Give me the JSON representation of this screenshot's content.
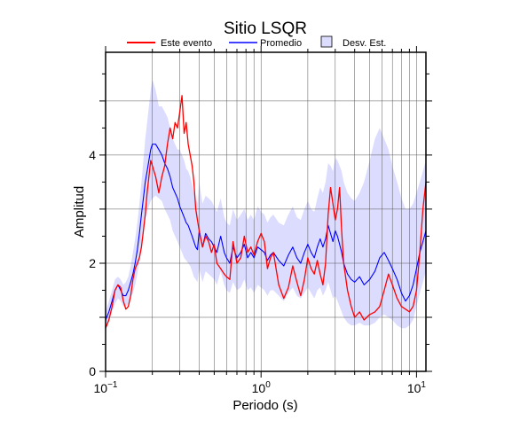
{
  "chart_data": {
    "type": "line",
    "title": "Sitio LSQR",
    "xlabel": "Periodo (s)",
    "ylabel": "Amplitud",
    "xscale": "log",
    "xlim": [
      0.1,
      11.5
    ],
    "ylim": [
      0,
      5.9
    ],
    "grid": true,
    "legend_position": "top",
    "x_ticks": [
      {
        "value": 0.1,
        "base": "10",
        "exp": "−1"
      },
      {
        "value": 1,
        "base": "10",
        "exp": "0"
      },
      {
        "value": 10,
        "base": "10",
        "exp": "1"
      }
    ],
    "y_ticks": [
      {
        "value": 0,
        "label": "0"
      },
      {
        "value": 2,
        "label": "2"
      },
      {
        "value": 4,
        "label": "4"
      }
    ],
    "series": [
      {
        "name": "Este evento",
        "color": "#ff0000",
        "x": [
          0.1,
          0.105,
          0.11,
          0.115,
          0.12,
          0.125,
          0.13,
          0.135,
          0.14,
          0.145,
          0.15,
          0.155,
          0.16,
          0.165,
          0.17,
          0.175,
          0.18,
          0.185,
          0.19,
          0.195,
          0.2,
          0.21,
          0.22,
          0.23,
          0.24,
          0.25,
          0.26,
          0.27,
          0.28,
          0.29,
          0.3,
          0.31,
          0.32,
          0.33,
          0.34,
          0.35,
          0.36,
          0.37,
          0.38,
          0.39,
          0.4,
          0.42,
          0.44,
          0.46,
          0.48,
          0.5,
          0.52,
          0.55,
          0.58,
          0.6,
          0.63,
          0.66,
          0.7,
          0.74,
          0.78,
          0.82,
          0.86,
          0.9,
          0.95,
          1.0,
          1.05,
          1.1,
          1.15,
          1.2,
          1.3,
          1.4,
          1.5,
          1.6,
          1.7,
          1.8,
          1.9,
          2.0,
          2.1,
          2.2,
          2.3,
          2.4,
          2.5,
          2.6,
          2.7,
          2.8,
          2.9,
          3.0,
          3.1,
          3.2,
          3.3,
          3.4,
          3.6,
          3.8,
          4.0,
          4.3,
          4.6,
          5.0,
          5.4,
          5.8,
          6.2,
          6.6,
          7.0,
          7.5,
          8.0,
          8.5,
          9.0,
          9.5,
          10.0,
          10.5,
          11.0,
          11.5
        ],
        "y": [
          0.8,
          0.95,
          1.2,
          1.5,
          1.6,
          1.55,
          1.3,
          1.15,
          1.2,
          1.4,
          1.7,
          1.9,
          2.0,
          2.1,
          2.3,
          2.6,
          2.9,
          3.3,
          3.6,
          3.9,
          3.8,
          3.6,
          3.3,
          3.6,
          3.8,
          4.2,
          4.5,
          4.3,
          4.6,
          4.5,
          4.8,
          5.1,
          4.4,
          4.6,
          4.2,
          4.0,
          3.8,
          3.5,
          3.0,
          2.8,
          2.6,
          2.3,
          2.5,
          2.4,
          2.2,
          2.35,
          2.0,
          1.9,
          1.8,
          1.75,
          1.7,
          2.4,
          2.0,
          2.1,
          2.5,
          2.2,
          2.3,
          2.15,
          2.4,
          2.55,
          2.4,
          1.9,
          2.1,
          2.2,
          1.6,
          1.35,
          1.55,
          1.95,
          1.65,
          1.4,
          1.7,
          2.1,
          1.9,
          1.8,
          2.05,
          1.8,
          1.6,
          2.0,
          2.9,
          3.4,
          3.1,
          2.8,
          3.0,
          3.4,
          2.6,
          2.0,
          1.5,
          1.2,
          1.0,
          1.1,
          0.95,
          1.05,
          1.1,
          1.2,
          1.5,
          1.8,
          1.6,
          1.35,
          1.2,
          1.15,
          1.1,
          1.2,
          1.5,
          2.2,
          3.0,
          3.5
        ]
      },
      {
        "name": "Promedio",
        "color": "#0000ff",
        "x": [
          0.1,
          0.105,
          0.11,
          0.115,
          0.12,
          0.125,
          0.13,
          0.135,
          0.14,
          0.145,
          0.15,
          0.155,
          0.16,
          0.165,
          0.17,
          0.175,
          0.18,
          0.185,
          0.19,
          0.195,
          0.2,
          0.21,
          0.22,
          0.23,
          0.24,
          0.25,
          0.26,
          0.27,
          0.28,
          0.29,
          0.3,
          0.31,
          0.32,
          0.33,
          0.34,
          0.35,
          0.36,
          0.37,
          0.38,
          0.39,
          0.4,
          0.42,
          0.44,
          0.46,
          0.48,
          0.5,
          0.52,
          0.55,
          0.58,
          0.6,
          0.63,
          0.66,
          0.7,
          0.74,
          0.78,
          0.82,
          0.86,
          0.9,
          0.95,
          1.0,
          1.05,
          1.1,
          1.15,
          1.2,
          1.3,
          1.4,
          1.5,
          1.6,
          1.7,
          1.8,
          1.9,
          2.0,
          2.1,
          2.2,
          2.3,
          2.4,
          2.5,
          2.6,
          2.7,
          2.8,
          2.9,
          3.0,
          3.1,
          3.2,
          3.3,
          3.4,
          3.6,
          3.8,
          4.0,
          4.3,
          4.6,
          5.0,
          5.4,
          5.8,
          6.2,
          6.6,
          7.0,
          7.5,
          8.0,
          8.5,
          9.0,
          9.5,
          10.0,
          10.5,
          11.0,
          11.5
        ],
        "y": [
          0.95,
          1.1,
          1.3,
          1.5,
          1.6,
          1.5,
          1.4,
          1.4,
          1.5,
          1.65,
          1.8,
          2.0,
          2.25,
          2.55,
          2.9,
          3.2,
          3.5,
          3.7,
          3.9,
          4.1,
          4.2,
          4.2,
          4.1,
          4.0,
          3.85,
          3.75,
          3.6,
          3.4,
          3.3,
          3.2,
          3.05,
          2.95,
          2.85,
          2.75,
          2.7,
          2.6,
          2.5,
          2.4,
          2.3,
          2.25,
          2.6,
          2.3,
          2.55,
          2.45,
          2.4,
          2.3,
          2.2,
          2.5,
          2.2,
          2.1,
          2.0,
          2.3,
          2.1,
          2.2,
          2.35,
          2.1,
          2.2,
          2.1,
          2.3,
          2.25,
          2.2,
          2.05,
          2.15,
          2.2,
          2.05,
          1.95,
          2.15,
          2.3,
          2.1,
          2.0,
          2.2,
          2.35,
          2.2,
          2.1,
          2.3,
          2.45,
          2.3,
          2.45,
          2.7,
          2.55,
          2.4,
          2.6,
          2.5,
          2.35,
          2.2,
          2.0,
          1.8,
          1.7,
          1.65,
          1.75,
          1.6,
          1.7,
          1.85,
          2.1,
          2.2,
          2.05,
          1.9,
          1.7,
          1.45,
          1.3,
          1.4,
          1.6,
          1.9,
          2.2,
          2.4,
          2.6
        ]
      },
      {
        "name": "Desv. Est.",
        "color": "#dcdcff",
        "x": [
          0.1,
          0.105,
          0.11,
          0.115,
          0.12,
          0.125,
          0.13,
          0.135,
          0.14,
          0.145,
          0.15,
          0.155,
          0.16,
          0.165,
          0.17,
          0.175,
          0.18,
          0.185,
          0.19,
          0.195,
          0.2,
          0.21,
          0.22,
          0.23,
          0.24,
          0.25,
          0.26,
          0.27,
          0.28,
          0.29,
          0.3,
          0.31,
          0.32,
          0.33,
          0.34,
          0.35,
          0.36,
          0.37,
          0.38,
          0.39,
          0.4,
          0.42,
          0.44,
          0.46,
          0.48,
          0.5,
          0.52,
          0.55,
          0.58,
          0.6,
          0.63,
          0.66,
          0.7,
          0.74,
          0.78,
          0.82,
          0.86,
          0.9,
          0.95,
          1.0,
          1.05,
          1.1,
          1.15,
          1.2,
          1.3,
          1.4,
          1.5,
          1.6,
          1.7,
          1.8,
          1.9,
          2.0,
          2.1,
          2.2,
          2.3,
          2.4,
          2.5,
          2.6,
          2.7,
          2.8,
          2.9,
          3.0,
          3.1,
          3.2,
          3.3,
          3.4,
          3.6,
          3.8,
          4.0,
          4.3,
          4.6,
          5.0,
          5.4,
          5.8,
          6.2,
          6.6,
          7.0,
          7.5,
          8.0,
          8.5,
          9.0,
          9.5,
          10.0,
          10.5,
          11.0,
          11.5
        ],
        "upper": [
          1.1,
          1.3,
          1.5,
          1.7,
          1.75,
          1.7,
          1.6,
          1.65,
          1.75,
          1.95,
          2.2,
          2.45,
          2.75,
          3.1,
          3.5,
          3.9,
          4.3,
          4.6,
          4.9,
          5.2,
          5.4,
          5.2,
          4.9,
          4.9,
          4.8,
          4.7,
          4.5,
          4.3,
          4.2,
          4.1,
          4.1,
          4.0,
          3.9,
          3.75,
          3.7,
          3.6,
          3.45,
          3.3,
          3.2,
          3.1,
          3.5,
          3.1,
          3.25,
          3.2,
          3.15,
          3.05,
          2.95,
          3.2,
          2.85,
          2.75,
          2.7,
          3.0,
          2.8,
          2.9,
          3.0,
          2.8,
          2.9,
          2.8,
          3.05,
          2.95,
          2.9,
          2.75,
          2.85,
          2.9,
          2.75,
          2.7,
          2.9,
          3.05,
          2.85,
          2.8,
          3.0,
          3.15,
          3.0,
          2.95,
          3.2,
          3.4,
          3.3,
          3.5,
          3.85,
          3.8,
          3.7,
          3.95,
          3.9,
          3.8,
          3.7,
          3.5,
          3.3,
          3.2,
          3.15,
          3.3,
          3.5,
          3.9,
          4.3,
          4.5,
          4.3,
          4.1,
          3.8,
          3.5,
          3.2,
          3.0,
          3.0,
          3.1,
          3.3,
          3.5,
          3.7,
          3.9
        ],
        "lower": [
          0.85,
          0.95,
          1.1,
          1.25,
          1.35,
          1.3,
          1.2,
          1.2,
          1.25,
          1.35,
          1.45,
          1.6,
          1.8,
          2.05,
          2.35,
          2.6,
          2.8,
          2.95,
          3.05,
          3.15,
          3.2,
          3.25,
          3.2,
          3.15,
          3.0,
          2.9,
          2.8,
          2.6,
          2.5,
          2.4,
          2.3,
          2.2,
          2.1,
          2.05,
          2.0,
          1.95,
          1.85,
          1.75,
          1.7,
          1.65,
          1.9,
          1.65,
          1.85,
          1.8,
          1.75,
          1.7,
          1.6,
          1.85,
          1.6,
          1.5,
          1.45,
          1.65,
          1.5,
          1.55,
          1.7,
          1.5,
          1.55,
          1.45,
          1.6,
          1.55,
          1.5,
          1.4,
          1.5,
          1.5,
          1.4,
          1.3,
          1.45,
          1.55,
          1.4,
          1.35,
          1.45,
          1.55,
          1.45,
          1.35,
          1.5,
          1.55,
          1.4,
          1.5,
          1.65,
          1.5,
          1.35,
          1.4,
          1.3,
          1.2,
          1.1,
          1.0,
          0.9,
          0.85,
          0.85,
          0.9,
          0.85,
          0.85,
          0.9,
          1.0,
          1.05,
          1.0,
          0.95,
          0.85,
          0.8,
          0.8,
          0.85,
          0.95,
          1.2,
          1.45,
          1.65,
          1.85
        ]
      }
    ]
  }
}
